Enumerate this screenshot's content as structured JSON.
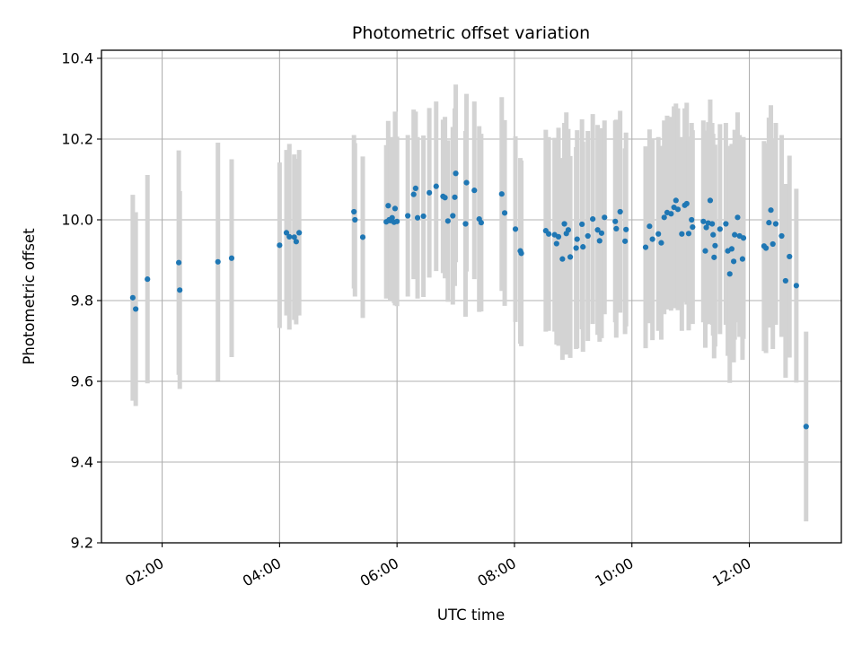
{
  "chart_data": {
    "type": "scatter",
    "title": "Photometric offset variation",
    "xlabel": "UTC time",
    "ylabel": "Photometric offset",
    "xlim": [
      "00:58",
      "13:34"
    ],
    "ylim": [
      9.2,
      10.42
    ],
    "x_ticks": [
      "02:00",
      "04:00",
      "06:00",
      "08:00",
      "10:00",
      "12:00"
    ],
    "y_ticks": [
      "9.2",
      "9.4",
      "9.6",
      "9.8",
      "10.0",
      "10.2",
      "10.4"
    ],
    "grid": true,
    "colors": {
      "marker": "#1f77b4",
      "errorbar": "#d3d3d3"
    },
    "series": [
      {
        "points": [
          {
            "x": "01:30",
            "y": 9.807,
            "err": 0.255
          },
          {
            "x": "01:33",
            "y": 9.779,
            "err": 0.24
          },
          {
            "x": "01:45",
            "y": 9.853,
            "err": 0.258
          },
          {
            "x": "02:17",
            "y": 9.894,
            "err": 0.278
          },
          {
            "x": "02:18",
            "y": 9.826,
            "err": 0.245
          },
          {
            "x": "02:57",
            "y": 9.896,
            "err": 0.295
          },
          {
            "x": "03:11",
            "y": 9.905,
            "err": 0.245
          },
          {
            "x": "04:00",
            "y": 9.937,
            "err": 0.205
          },
          {
            "x": "04:07",
            "y": 9.968,
            "err": 0.205
          },
          {
            "x": "04:10",
            "y": 9.958,
            "err": 0.23
          },
          {
            "x": "04:15",
            "y": 9.957,
            "err": 0.205
          },
          {
            "x": "04:17",
            "y": 9.946,
            "err": 0.205
          },
          {
            "x": "04:20",
            "y": 9.968,
            "err": 0.205
          },
          {
            "x": "05:16",
            "y": 10.02,
            "err": 0.19
          },
          {
            "x": "05:17",
            "y": 10.0,
            "err": 0.19
          },
          {
            "x": "05:25",
            "y": 9.957,
            "err": 0.2
          },
          {
            "x": "05:49",
            "y": 9.995,
            "err": 0.19
          },
          {
            "x": "05:51",
            "y": 10.035,
            "err": 0.21
          },
          {
            "x": "05:52",
            "y": 10.0,
            "err": 0.19
          },
          {
            "x": "05:53",
            "y": 9.998,
            "err": 0.2
          },
          {
            "x": "05:55",
            "y": 10.005,
            "err": 0.2
          },
          {
            "x": "05:57",
            "y": 9.994,
            "err": 0.2
          },
          {
            "x": "05:58",
            "y": 10.028,
            "err": 0.24
          },
          {
            "x": "06:00",
            "y": 9.996,
            "err": 0.21
          },
          {
            "x": "06:11",
            "y": 10.01,
            "err": 0.2
          },
          {
            "x": "06:17",
            "y": 10.063,
            "err": 0.21
          },
          {
            "x": "06:19",
            "y": 10.078,
            "err": 0.19
          },
          {
            "x": "06:21",
            "y": 10.005,
            "err": 0.2
          },
          {
            "x": "06:27",
            "y": 10.009,
            "err": 0.2
          },
          {
            "x": "06:33",
            "y": 10.067,
            "err": 0.21
          },
          {
            "x": "06:40",
            "y": 10.083,
            "err": 0.21
          },
          {
            "x": "06:47",
            "y": 10.058,
            "err": 0.19
          },
          {
            "x": "06:49",
            "y": 10.055,
            "err": 0.2
          },
          {
            "x": "06:52",
            "y": 9.997,
            "err": 0.2
          },
          {
            "x": "06:57",
            "y": 10.01,
            "err": 0.22
          },
          {
            "x": "06:59",
            "y": 10.056,
            "err": 0.22
          },
          {
            "x": "07:00",
            "y": 10.115,
            "err": 0.22
          },
          {
            "x": "07:10",
            "y": 9.99,
            "err": 0.23
          },
          {
            "x": "07:11",
            "y": 10.092,
            "err": 0.22
          },
          {
            "x": "07:19",
            "y": 10.073,
            "err": 0.22
          },
          {
            "x": "07:24",
            "y": 10.002,
            "err": 0.23
          },
          {
            "x": "07:26",
            "y": 9.993,
            "err": 0.22
          },
          {
            "x": "07:47",
            "y": 10.064,
            "err": 0.24
          },
          {
            "x": "07:50",
            "y": 10.017,
            "err": 0.23
          },
          {
            "x": "08:01",
            "y": 9.977,
            "err": 0.23
          },
          {
            "x": "08:06",
            "y": 9.923,
            "err": 0.23
          },
          {
            "x": "08:07",
            "y": 9.917,
            "err": 0.23
          },
          {
            "x": "08:32",
            "y": 9.973,
            "err": 0.25
          },
          {
            "x": "08:35",
            "y": 9.965,
            "err": 0.24
          },
          {
            "x": "08:41",
            "y": 9.963,
            "err": 0.24
          },
          {
            "x": "08:43",
            "y": 9.941,
            "err": 0.25
          },
          {
            "x": "08:45",
            "y": 9.958,
            "err": 0.27
          },
          {
            "x": "08:49",
            "y": 9.903,
            "err": 0.25
          },
          {
            "x": "08:51",
            "y": 9.99,
            "err": 0.25
          },
          {
            "x": "08:53",
            "y": 9.966,
            "err": 0.3
          },
          {
            "x": "08:55",
            "y": 9.975,
            "err": 0.25
          },
          {
            "x": "08:57",
            "y": 9.908,
            "err": 0.25
          },
          {
            "x": "09:03",
            "y": 9.93,
            "err": 0.25
          },
          {
            "x": "09:04",
            "y": 9.952,
            "err": 0.27
          },
          {
            "x": "09:09",
            "y": 9.989,
            "err": 0.26
          },
          {
            "x": "09:10",
            "y": 9.933,
            "err": 0.26
          },
          {
            "x": "09:15",
            "y": 9.96,
            "err": 0.26
          },
          {
            "x": "09:20",
            "y": 10.002,
            "err": 0.26
          },
          {
            "x": "09:25",
            "y": 9.975,
            "err": 0.26
          },
          {
            "x": "09:27",
            "y": 9.948,
            "err": 0.25
          },
          {
            "x": "09:29",
            "y": 9.967,
            "err": 0.26
          },
          {
            "x": "09:32",
            "y": 10.006,
            "err": 0.24
          },
          {
            "x": "09:43",
            "y": 9.996,
            "err": 0.25
          },
          {
            "x": "09:44",
            "y": 9.978,
            "err": 0.27
          },
          {
            "x": "09:48",
            "y": 10.02,
            "err": 0.25
          },
          {
            "x": "09:53",
            "y": 9.947,
            "err": 0.23
          },
          {
            "x": "09:54",
            "y": 9.976,
            "err": 0.24
          },
          {
            "x": "10:14",
            "y": 9.932,
            "err": 0.25
          },
          {
            "x": "10:18",
            "y": 9.984,
            "err": 0.24
          },
          {
            "x": "10:21",
            "y": 9.952,
            "err": 0.25
          },
          {
            "x": "10:27",
            "y": 9.965,
            "err": 0.24
          },
          {
            "x": "10:30",
            "y": 9.943,
            "err": 0.24
          },
          {
            "x": "10:33",
            "y": 10.006,
            "err": 0.24
          },
          {
            "x": "10:36",
            "y": 10.018,
            "err": 0.24
          },
          {
            "x": "10:40",
            "y": 10.015,
            "err": 0.24
          },
          {
            "x": "10:43",
            "y": 10.031,
            "err": 0.25
          },
          {
            "x": "10:45",
            "y": 10.048,
            "err": 0.24
          },
          {
            "x": "10:47",
            "y": 10.026,
            "err": 0.25
          },
          {
            "x": "10:51",
            "y": 9.965,
            "err": 0.24
          },
          {
            "x": "10:54",
            "y": 10.036,
            "err": 0.24
          },
          {
            "x": "10:56",
            "y": 10.04,
            "err": 0.25
          },
          {
            "x": "10:58",
            "y": 9.966,
            "err": 0.24
          },
          {
            "x": "11:01",
            "y": 10.0,
            "err": 0.24
          },
          {
            "x": "11:02",
            "y": 9.982,
            "err": 0.24
          },
          {
            "x": "11:13",
            "y": 9.996,
            "err": 0.25
          },
          {
            "x": "11:15",
            "y": 9.923,
            "err": 0.24
          },
          {
            "x": "11:16",
            "y": 9.981,
            "err": 0.24
          },
          {
            "x": "11:18",
            "y": 9.992,
            "err": 0.25
          },
          {
            "x": "11:20",
            "y": 10.048,
            "err": 0.25
          },
          {
            "x": "11:22",
            "y": 9.99,
            "err": 0.25
          },
          {
            "x": "11:23",
            "y": 9.963,
            "err": 0.25
          },
          {
            "x": "11:24",
            "y": 9.907,
            "err": 0.25
          },
          {
            "x": "11:25",
            "y": 9.936,
            "err": 0.25
          },
          {
            "x": "11:30",
            "y": 9.977,
            "err": 0.26
          },
          {
            "x": "11:36",
            "y": 9.99,
            "err": 0.25
          },
          {
            "x": "11:38",
            "y": 9.923,
            "err": 0.26
          },
          {
            "x": "11:40",
            "y": 9.866,
            "err": 0.27
          },
          {
            "x": "11:42",
            "y": 9.928,
            "err": 0.26
          },
          {
            "x": "11:44",
            "y": 9.897,
            "err": 0.25
          },
          {
            "x": "11:45",
            "y": 9.963,
            "err": 0.26
          },
          {
            "x": "11:48",
            "y": 10.006,
            "err": 0.26
          },
          {
            "x": "11:50",
            "y": 9.96,
            "err": 0.25
          },
          {
            "x": "11:53",
            "y": 9.903,
            "err": 0.25
          },
          {
            "x": "11:54",
            "y": 9.955,
            "err": 0.25
          },
          {
            "x": "12:15",
            "y": 9.935,
            "err": 0.26
          },
          {
            "x": "12:17",
            "y": 9.93,
            "err": 0.26
          },
          {
            "x": "12:20",
            "y": 9.993,
            "err": 0.26
          },
          {
            "x": "12:22",
            "y": 10.024,
            "err": 0.26
          },
          {
            "x": "12:24",
            "y": 9.94,
            "err": 0.26
          },
          {
            "x": "12:27",
            "y": 9.99,
            "err": 0.25
          },
          {
            "x": "12:33",
            "y": 9.96,
            "err": 0.25
          },
          {
            "x": "12:37",
            "y": 9.849,
            "err": 0.24
          },
          {
            "x": "12:41",
            "y": 9.909,
            "err": 0.25
          },
          {
            "x": "12:48",
            "y": 9.837,
            "err": 0.24
          },
          {
            "x": "12:58",
            "y": 9.488,
            "err": 0.235
          }
        ]
      }
    ]
  }
}
